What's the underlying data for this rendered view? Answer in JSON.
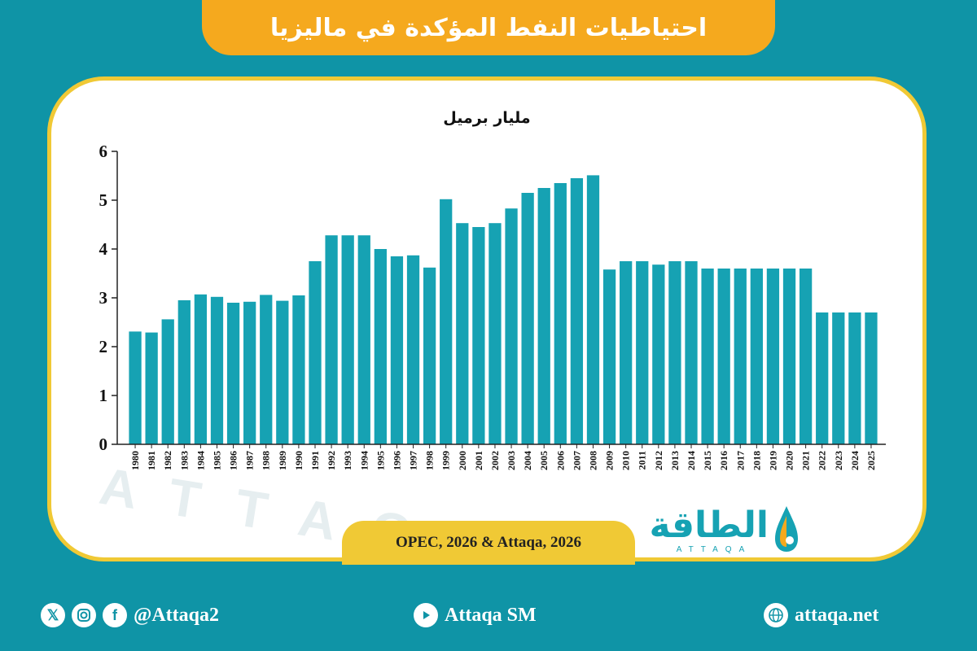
{
  "header": {
    "title": "احتياطيات النفط المؤكدة في ماليزيا"
  },
  "chart_data": {
    "type": "bar",
    "title": "مليار برميل",
    "ylabel": "مليار برميل",
    "ylim": [
      0,
      6
    ],
    "yticks": [
      "0",
      "1",
      "2",
      "3",
      "4",
      "5",
      "6"
    ],
    "grid": false,
    "bar_color": "#16a2b3",
    "categories": [
      "1980",
      "1981",
      "1982",
      "1983",
      "1984",
      "1985",
      "1986",
      "1987",
      "1988",
      "1989",
      "1990",
      "1991",
      "1992",
      "1993",
      "1994",
      "1995",
      "1996",
      "1997",
      "1998",
      "1999",
      "2000",
      "2001",
      "2002",
      "2003",
      "2004",
      "2005",
      "2006",
      "2007",
      "2008",
      "2009",
      "2010",
      "2011",
      "2012",
      "2013",
      "2014",
      "2015",
      "2016",
      "2017",
      "2018",
      "2019",
      "2020",
      "2021",
      "2022",
      "2023",
      "2024",
      "2025"
    ],
    "values": [
      2.31,
      2.29,
      2.56,
      2.95,
      3.07,
      3.02,
      2.9,
      2.92,
      3.06,
      2.94,
      3.05,
      3.75,
      4.28,
      4.28,
      4.28,
      4.0,
      3.85,
      3.87,
      3.62,
      5.02,
      4.53,
      4.45,
      4.53,
      4.83,
      5.15,
      5.25,
      5.35,
      5.45,
      5.51,
      3.58,
      3.75,
      3.75,
      3.68,
      3.75,
      3.75,
      3.6,
      3.6,
      3.6,
      3.6,
      3.6,
      3.6,
      3.6,
      2.7,
      2.7,
      2.7,
      2.7
    ]
  },
  "source": {
    "text": "OPEC, 2026 & Attaqa, 2026"
  },
  "logo": {
    "arabic": "الطاقة",
    "latin": "ATTAQA"
  },
  "watermark": {
    "text": "ATTAQA"
  },
  "footer": {
    "twitter_icon": "x-icon",
    "instagram_icon": "instagram-icon",
    "facebook_icon": "facebook-icon",
    "handle": "@Attaqa2",
    "youtube_icon": "youtube-icon",
    "youtube_label": "Attaqa SM",
    "globe_icon": "globe-icon",
    "website": "attaqa.net"
  },
  "colors": {
    "background": "#0f94a6",
    "banner": "#f5a91e",
    "card_border": "#f0c935",
    "bars": "#16a2b3"
  }
}
